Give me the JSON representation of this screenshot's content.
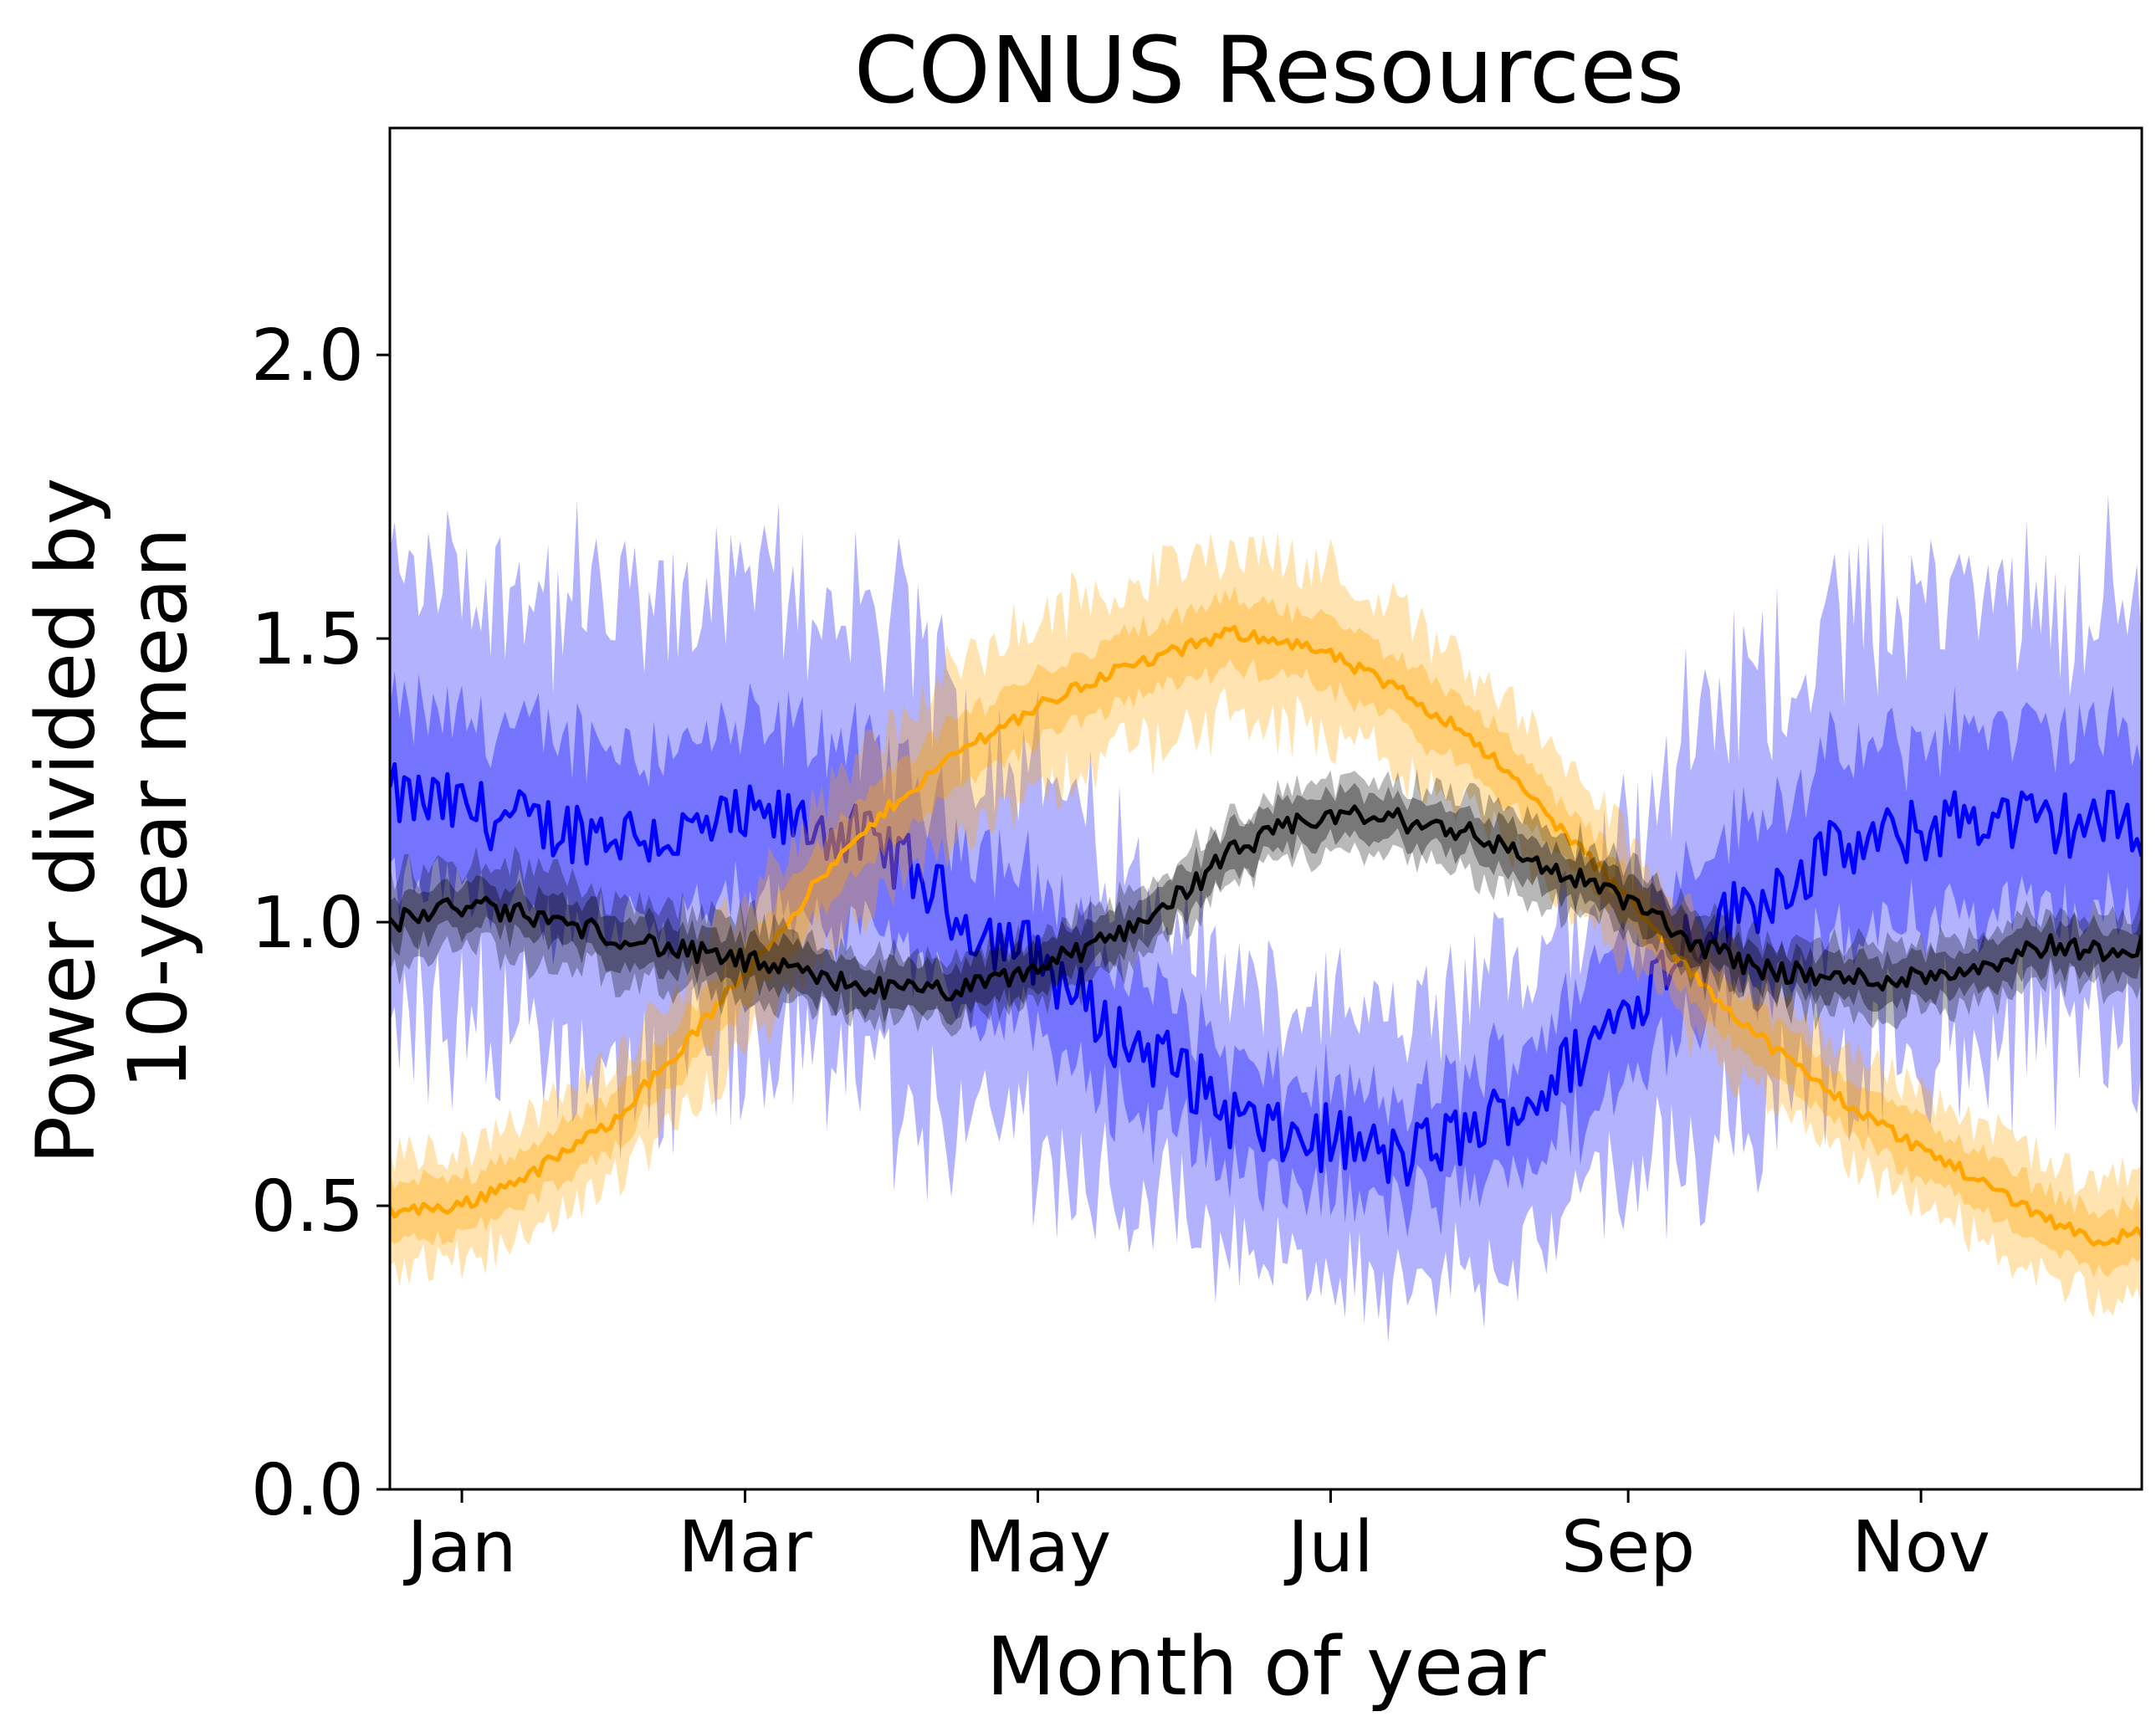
{
  "chart_data": {
    "type": "area",
    "title": "CONUS Resources",
    "xlabel": "Month of year",
    "ylabel": [
      "Power divided by",
      "10-year mean"
    ],
    "x_range_days": [
      0,
      365
    ],
    "ylim": [
      0.0,
      2.4
    ],
    "x_ticks": [
      {
        "label": "Jan",
        "day": 15
      },
      {
        "label": "Mar",
        "day": 74
      },
      {
        "label": "May",
        "day": 135
      },
      {
        "label": "Jul",
        "day": 196
      },
      {
        "label": "Sep",
        "day": 258
      },
      {
        "label": "Nov",
        "day": 319
      }
    ],
    "y_ticks": [
      {
        "label": "0.0",
        "value": 0.0
      },
      {
        "label": "0.5",
        "value": 0.5
      },
      {
        "label": "1.0",
        "value": 1.0
      },
      {
        "label": "1.5",
        "value": 1.5
      },
      {
        "label": "2.0",
        "value": 2.0
      }
    ],
    "grid": false,
    "legend": "none",
    "series": [
      {
        "color": "#ffa500",
        "description": "solar (orange): low in winter, peak near June",
        "x": [
          0,
          15,
          30,
          45,
          60,
          75,
          90,
          105,
          120,
          135,
          150,
          165,
          175,
          185,
          196,
          210,
          225,
          240,
          258,
          270,
          285,
          300,
          315,
          330,
          345,
          355,
          365
        ],
        "median": [
          0.49,
          0.5,
          0.56,
          0.64,
          0.77,
          0.92,
          1.08,
          1.21,
          1.31,
          1.38,
          1.44,
          1.48,
          1.51,
          1.5,
          1.47,
          1.41,
          1.33,
          1.2,
          1.04,
          0.92,
          0.8,
          0.7,
          0.62,
          0.55,
          0.48,
          0.44,
          0.45
        ],
        "inner_half_width": [
          0.05,
          0.05,
          0.05,
          0.05,
          0.05,
          0.06,
          0.06,
          0.06,
          0.06,
          0.06,
          0.06,
          0.06,
          0.06,
          0.06,
          0.06,
          0.06,
          0.06,
          0.05,
          0.05,
          0.05,
          0.05,
          0.05,
          0.05,
          0.05,
          0.05,
          0.05,
          0.05
        ],
        "outer_half_width": [
          0.1,
          0.1,
          0.1,
          0.11,
          0.12,
          0.13,
          0.14,
          0.14,
          0.15,
          0.15,
          0.15,
          0.15,
          0.15,
          0.15,
          0.15,
          0.14,
          0.13,
          0.12,
          0.11,
          0.11,
          0.1,
          0.1,
          0.1,
          0.1,
          0.1,
          0.1,
          0.1
        ]
      },
      {
        "color": "#0000ff",
        "description": "wind (blue): high in winter, low in summer",
        "x": [
          0,
          15,
          30,
          45,
          60,
          75,
          90,
          105,
          120,
          135,
          150,
          165,
          175,
          185,
          196,
          210,
          225,
          240,
          258,
          270,
          285,
          300,
          315,
          330,
          345,
          355,
          365
        ],
        "median": [
          1.22,
          1.2,
          1.17,
          1.16,
          1.15,
          1.18,
          1.17,
          1.12,
          1.0,
          0.94,
          0.81,
          0.74,
          0.66,
          0.62,
          0.62,
          0.58,
          0.63,
          0.7,
          0.85,
          0.97,
          1.04,
          1.12,
          1.15,
          1.19,
          1.17,
          1.18,
          1.17
        ],
        "inner_half_width": [
          0.15,
          0.16,
          0.16,
          0.16,
          0.16,
          0.16,
          0.16,
          0.16,
          0.15,
          0.14,
          0.12,
          0.11,
          0.1,
          0.09,
          0.09,
          0.09,
          0.1,
          0.11,
          0.13,
          0.14,
          0.15,
          0.16,
          0.16,
          0.16,
          0.16,
          0.16,
          0.15
        ],
        "outer_half_width": [
          0.38,
          0.4,
          0.4,
          0.4,
          0.4,
          0.4,
          0.4,
          0.4,
          0.36,
          0.33,
          0.3,
          0.28,
          0.25,
          0.23,
          0.22,
          0.22,
          0.24,
          0.27,
          0.32,
          0.36,
          0.38,
          0.4,
          0.4,
          0.4,
          0.4,
          0.4,
          0.38
        ]
      },
      {
        "color": "#000000",
        "description": "demand (black): higher in summer",
        "x": [
          0,
          15,
          30,
          45,
          60,
          75,
          90,
          105,
          120,
          135,
          150,
          165,
          175,
          185,
          196,
          210,
          225,
          240,
          258,
          270,
          285,
          300,
          315,
          330,
          345,
          355,
          365
        ],
        "median": [
          1.0,
          1.03,
          1.01,
          0.98,
          0.95,
          0.93,
          0.9,
          0.88,
          0.88,
          0.92,
          0.97,
          1.05,
          1.12,
          1.16,
          1.19,
          1.18,
          1.16,
          1.1,
          1.04,
          0.97,
          0.92,
          0.9,
          0.9,
          0.92,
          0.96,
          0.95,
          0.96
        ],
        "inner_half_width": [
          0.04,
          0.04,
          0.04,
          0.04,
          0.04,
          0.04,
          0.04,
          0.04,
          0.04,
          0.04,
          0.04,
          0.04,
          0.04,
          0.04,
          0.04,
          0.04,
          0.04,
          0.04,
          0.04,
          0.04,
          0.04,
          0.04,
          0.04,
          0.04,
          0.04,
          0.04,
          0.04
        ],
        "outer_half_width": [
          0.08,
          0.08,
          0.08,
          0.07,
          0.07,
          0.07,
          0.06,
          0.06,
          0.06,
          0.06,
          0.06,
          0.06,
          0.06,
          0.06,
          0.06,
          0.07,
          0.07,
          0.07,
          0.06,
          0.06,
          0.06,
          0.06,
          0.06,
          0.06,
          0.06,
          0.06,
          0.06
        ]
      }
    ]
  }
}
